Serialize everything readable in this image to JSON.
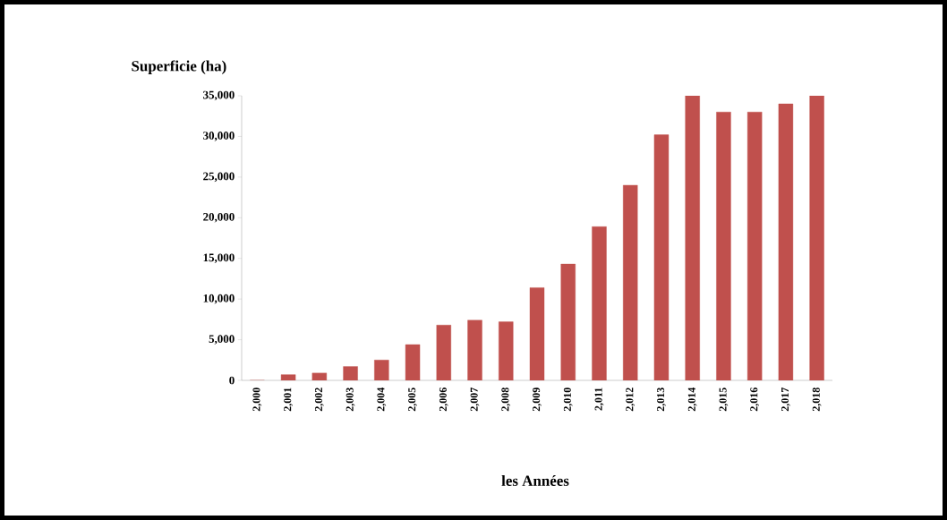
{
  "chart_data": {
    "type": "bar",
    "xlabel": "les Années",
    "ylabel": "Superficie (ha)",
    "categories": [
      "2,000",
      "2,001",
      "2,002",
      "2,003",
      "2,004",
      "2,005",
      "2,006",
      "2,007",
      "2,008",
      "2,009",
      "2,010",
      "2,011",
      "2,012",
      "2,013",
      "2,014",
      "2,015",
      "2,016",
      "2,017",
      "2,018"
    ],
    "values": [
      0,
      700,
      900,
      1700,
      2500,
      4400,
      6800,
      7400,
      7200,
      11400,
      14300,
      18900,
      24000,
      30200,
      35000,
      33000,
      33000,
      34000,
      35000
    ],
    "color": "#c0504d",
    "ylim": [
      0,
      35000
    ],
    "yticks": [
      0,
      {
        "value": 5000,
        "label": "5,000"
      },
      {
        "value": 10000,
        "label": "10,000"
      },
      {
        "value": 15000,
        "label": "15,000"
      },
      {
        "value": 20000,
        "label": "20,000"
      },
      {
        "value": 25000,
        "label": "25,000"
      },
      {
        "value": 30000,
        "label": "30,000"
      },
      {
        "value": 35000,
        "label": "35,000"
      }
    ],
    "grid": false
  }
}
